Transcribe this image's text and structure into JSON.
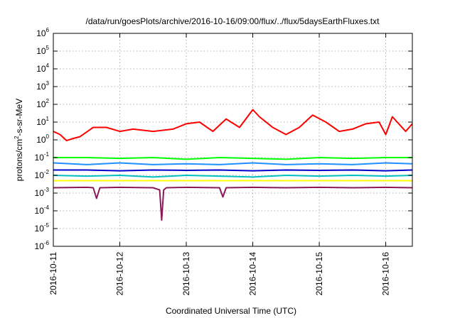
{
  "chart_data": {
    "type": "line",
    "title": "/data/run/goesPlots/archive/2016-10-16/09:00/flux/../flux/5daysEarthFluxes.txt",
    "xlabel": "Coordinated Universal Time (UTC)",
    "ylabel": {
      "prefix": "protons/cm",
      "sup": "2",
      "suffix": "-s-sr-MeV"
    },
    "yscale": "log",
    "ylim": [
      1e-06,
      1000000.0
    ],
    "y_ticks": [
      {
        "value": 1e-06,
        "base": "10",
        "exp": "-6"
      },
      {
        "value": 1e-05,
        "base": "10",
        "exp": "-5"
      },
      {
        "value": 0.0001,
        "base": "10",
        "exp": "-4"
      },
      {
        "value": 0.001,
        "base": "10",
        "exp": "-3"
      },
      {
        "value": 0.01,
        "base": "10",
        "exp": "-2"
      },
      {
        "value": 0.1,
        "base": "10",
        "exp": "-1"
      },
      {
        "value": 1,
        "base": "10",
        "exp": "0"
      },
      {
        "value": 10,
        "base": "10",
        "exp": "1"
      },
      {
        "value": 100,
        "base": "10",
        "exp": "2"
      },
      {
        "value": 1000.0,
        "base": "10",
        "exp": "3"
      },
      {
        "value": 10000.0,
        "base": "10",
        "exp": "4"
      },
      {
        "value": 100000.0,
        "base": "10",
        "exp": "5"
      },
      {
        "value": 1000000.0,
        "base": "10",
        "exp": "6"
      }
    ],
    "xlim_days": [
      0,
      5.4
    ],
    "x_ticks": [
      {
        "label": "2016-10-11",
        "day": 0
      },
      {
        "label": "2016-10-12",
        "day": 1
      },
      {
        "label": "2016-10-13",
        "day": 2
      },
      {
        "label": "2016-10-14",
        "day": 3
      },
      {
        "label": "2016-10-15",
        "day": 4
      },
      {
        "label": "2016-10-16",
        "day": 5
      }
    ],
    "grid": true,
    "series": [
      {
        "color": "#ff0000",
        "x": [
          0,
          0.1,
          0.2,
          0.3,
          0.4,
          0.6,
          0.8,
          1.0,
          1.2,
          1.5,
          1.8,
          2.0,
          2.2,
          2.4,
          2.6,
          2.8,
          3.0,
          3.1,
          3.3,
          3.5,
          3.7,
          3.9,
          4.1,
          4.3,
          4.5,
          4.7,
          4.9,
          5.0,
          5.1,
          5.3,
          5.4
        ],
        "values": [
          3,
          2,
          0.9,
          1.2,
          1.5,
          5,
          5,
          3,
          4,
          3,
          4,
          8,
          10,
          3,
          15,
          5,
          50,
          20,
          5,
          2,
          5,
          25,
          10,
          3,
          4,
          8,
          10,
          2,
          20,
          3,
          8
        ]
      },
      {
        "color": "#00ff00",
        "x": [
          0,
          0.5,
          1.0,
          1.5,
          2.0,
          2.5,
          3.0,
          3.5,
          4.0,
          4.5,
          5.0,
          5.4
        ],
        "values": [
          0.1,
          0.1,
          0.09,
          0.1,
          0.08,
          0.1,
          0.09,
          0.08,
          0.1,
          0.09,
          0.1,
          0.1
        ]
      },
      {
        "color": "#1e90ff",
        "x": [
          0,
          0.5,
          1.0,
          1.5,
          2.0,
          2.5,
          3.0,
          3.5,
          4.0,
          4.5,
          5.0,
          5.4
        ],
        "values": [
          0.05,
          0.04,
          0.05,
          0.04,
          0.045,
          0.04,
          0.05,
          0.04,
          0.045,
          0.04,
          0.05,
          0.045
        ]
      },
      {
        "color": "#0000cd",
        "x": [
          0,
          0.5,
          1.0,
          1.5,
          2.0,
          2.5,
          3.0,
          3.5,
          4.0,
          4.5,
          5.0,
          5.4
        ],
        "values": [
          0.02,
          0.02,
          0.018,
          0.02,
          0.019,
          0.02,
          0.018,
          0.02,
          0.019,
          0.02,
          0.018,
          0.02
        ]
      },
      {
        "color": "#00bfbf",
        "x": [
          0,
          0.5,
          1.0,
          1.5,
          2.0,
          2.5,
          3.0,
          3.5,
          4.0,
          4.5,
          5.0,
          5.4
        ],
        "values": [
          0.01,
          0.009,
          0.01,
          0.008,
          0.01,
          0.009,
          0.008,
          0.01,
          0.009,
          0.01,
          0.009,
          0.01
        ]
      },
      {
        "color": "#ffff00",
        "x": [
          0,
          0.5,
          1.0,
          1.5,
          2.0,
          2.5,
          3.0,
          3.5,
          4.0,
          4.5,
          5.0,
          5.4
        ],
        "values": [
          0.005,
          0.005,
          0.005,
          0.005,
          0.005,
          0.005,
          0.005,
          0.005,
          0.005,
          0.005,
          0.005,
          0.005
        ]
      },
      {
        "color": "#8b1a5a",
        "x": [
          0,
          0.5,
          0.6,
          0.65,
          0.7,
          1.0,
          1.5,
          1.6,
          1.63,
          1.66,
          1.7,
          2.0,
          2.5,
          2.55,
          2.6,
          3.0,
          3.5,
          4.0,
          4.5,
          5.0,
          5.4
        ],
        "values": [
          0.002,
          0.0021,
          0.002,
          0.0005,
          0.002,
          0.0021,
          0.002,
          0.0015,
          3e-05,
          0.0015,
          0.002,
          0.0021,
          0.002,
          0.0006,
          0.002,
          0.0021,
          0.002,
          0.0021,
          0.002,
          0.0021,
          0.002
        ]
      }
    ]
  }
}
